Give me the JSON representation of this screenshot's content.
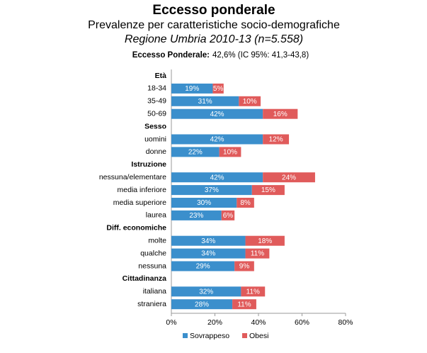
{
  "chart_data": {
    "type": "stacked-bar-horizontal",
    "title": "Eccesso ponderale",
    "subtitle": "Prevalenze per caratteristiche socio-demografiche",
    "subtitle2": "Regione Umbria 2010-13 (n=5.558)",
    "note_label": "Eccesso Ponderale:",
    "note": "42,6% (IC 95%: 41,3-43,8)",
    "categories": [
      "Età",
      "18-34",
      "35-49",
      "50-69",
      "Sesso",
      "uomini",
      "donne",
      "Istruzione",
      "nessuna/elementare",
      "media inferiore",
      "media superiore",
      "laurea",
      "Diff. economiche",
      "molte",
      "qualche",
      "nessuna",
      "Cittadinanza",
      "italiana",
      "straniera"
    ],
    "series": [
      {
        "name": "Sovrappeso",
        "color": "#3b8fcc",
        "values": [
          null,
          19,
          31,
          42,
          null,
          42,
          22,
          null,
          42,
          37,
          30,
          23,
          null,
          34,
          34,
          29,
          null,
          32,
          28
        ],
        "value_labels": [
          null,
          "19%",
          "31%",
          "42%",
          null,
          "42%",
          "22%",
          null,
          "42%",
          "37%",
          "30%",
          "23%",
          null,
          "34%",
          "34%",
          "29%",
          null,
          "32%",
          "28%"
        ]
      },
      {
        "name": "Obesi",
        "color": "#e05b5b",
        "values": [
          null,
          5,
          10,
          16,
          null,
          12,
          10,
          null,
          24,
          15,
          8,
          6,
          null,
          18,
          11,
          9,
          null,
          11,
          11
        ],
        "value_labels": [
          null,
          "5%",
          "10%",
          "16%",
          null,
          "12%",
          "10%",
          null,
          "24%",
          "15%",
          "8%",
          "6%",
          null,
          "18%",
          "11%",
          "9%",
          null,
          "11%",
          "11%"
        ]
      }
    ],
    "xlim": [
      0,
      80
    ],
    "xticks": [
      {
        "value": 0,
        "label": "0%"
      },
      {
        "value": 20,
        "label": "20%"
      },
      {
        "value": 40,
        "label": "40%"
      },
      {
        "value": 60,
        "label": "60%"
      },
      {
        "value": 80,
        "label": "80%"
      }
    ]
  }
}
